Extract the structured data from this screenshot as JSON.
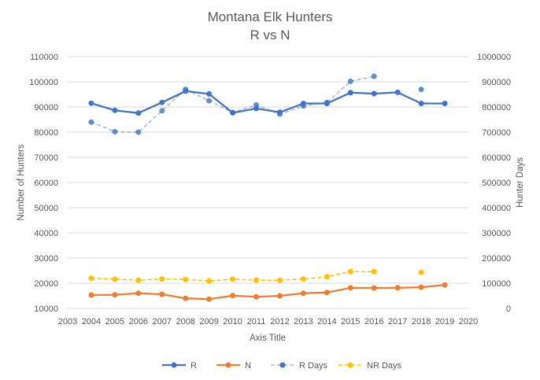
{
  "chart_data": {
    "type": "line",
    "title": "Montana Elk Hunters",
    "subtitle": "R vs N",
    "xlabel": "Axis Title",
    "ylabel": "Number of Hunters",
    "y2label": "Hunter Days",
    "x_ticks": [
      "2003",
      "2004",
      "2005",
      "2006",
      "2007",
      "2008",
      "2009",
      "2010",
      "2011",
      "2012",
      "2013",
      "2014",
      "2015",
      "2016",
      "2017",
      "2018",
      "2019",
      "2020"
    ],
    "y_ticks": [
      "10000",
      "20000",
      "30000",
      "40000",
      "50000",
      "60000",
      "70000",
      "80000",
      "90000",
      "100000",
      "110000"
    ],
    "y2_ticks": [
      "0",
      "100000",
      "200000",
      "300000",
      "400000",
      "500000",
      "600000",
      "700000",
      "800000",
      "900000",
      "1000000"
    ],
    "xlim": [
      2003,
      2020
    ],
    "ylim": [
      10000,
      110000
    ],
    "y2lim": [
      0,
      1000000
    ],
    "grid": true,
    "legend_position": "bottom",
    "series": [
      {
        "name": "R",
        "axis": "left",
        "color": "#4472c4",
        "style": "solid",
        "x": [
          2004,
          2005,
          2006,
          2007,
          2008,
          2009,
          2010,
          2011,
          2012,
          2013,
          2014,
          2015,
          2016,
          2017,
          2018,
          2019
        ],
        "y": [
          91500,
          88700,
          87600,
          91800,
          96300,
          95200,
          87700,
          89400,
          87900,
          91400,
          91400,
          95700,
          95300,
          95800,
          91400,
          91400
        ]
      },
      {
        "name": "N",
        "axis": "left",
        "color": "#ed7d31",
        "style": "solid",
        "x": [
          2004,
          2005,
          2006,
          2007,
          2008,
          2009,
          2010,
          2011,
          2012,
          2013,
          2014,
          2015,
          2016,
          2017,
          2018,
          2019
        ],
        "y": [
          15300,
          15400,
          16000,
          15600,
          14000,
          13700,
          15100,
          14600,
          15000,
          16000,
          16300,
          18200,
          18100,
          18200,
          18400,
          19300
        ]
      },
      {
        "name": "R Days",
        "axis": "right",
        "color": "#4472c4",
        "style": "dashed",
        "x": [
          2004,
          2005,
          2006,
          2007,
          2008,
          2009,
          2010,
          2011,
          2012,
          2013,
          2014,
          2015,
          2016,
          2018
        ],
        "y": [
          740000,
          702000,
          700000,
          785000,
          870000,
          825000,
          778000,
          808000,
          772000,
          804000,
          818000,
          902000,
          922000,
          870000
        ],
        "gap_before_last": true
      },
      {
        "name": "NR Days",
        "axis": "right",
        "color": "#ffc000",
        "style": "dashed",
        "x": [
          2004,
          2005,
          2006,
          2007,
          2008,
          2009,
          2010,
          2011,
          2012,
          2013,
          2014,
          2015,
          2016,
          2018
        ],
        "y": [
          120000,
          116000,
          112000,
          117000,
          115000,
          109000,
          116000,
          112000,
          112000,
          117000,
          126000,
          146000,
          146000,
          143000
        ],
        "gap_before_last": true
      }
    ]
  }
}
